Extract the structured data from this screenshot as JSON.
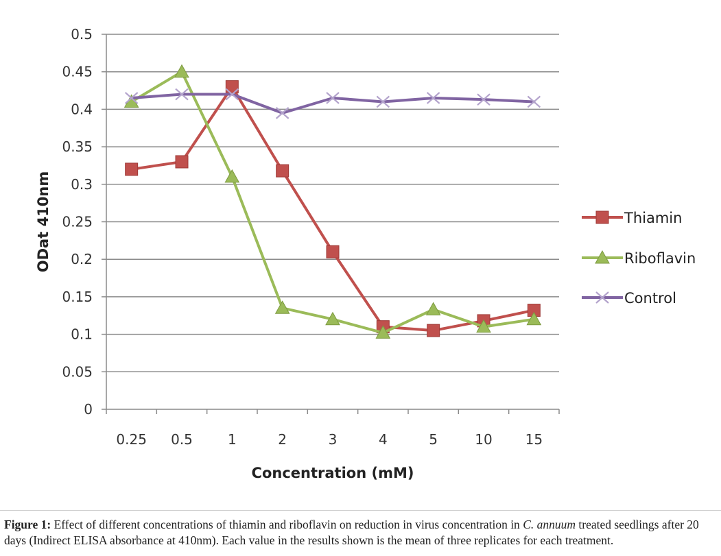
{
  "chart_data": {
    "type": "line",
    "title": "",
    "xlabel": "Concentration (mM)",
    "ylabel": "ODat 410nm",
    "categories": [
      "0.25",
      "0.5",
      "1",
      "2",
      "3",
      "4",
      "5",
      "10",
      "15"
    ],
    "ylim": [
      0,
      0.5
    ],
    "yticks": [
      0,
      0.05,
      0.1,
      0.15,
      0.2,
      0.25,
      0.3,
      0.35,
      0.4,
      0.45,
      0.5
    ],
    "ytick_labels": [
      "0",
      "0.05",
      "0.1",
      "0.15",
      "0.2",
      "0.25",
      "0.3",
      "0.35",
      "0.4",
      "0.45",
      "0.5"
    ],
    "grid": true,
    "legend_position": "right",
    "series": [
      {
        "name": "Thiamin",
        "color": "#c0504d",
        "marker": "square",
        "values": [
          0.32,
          0.33,
          0.43,
          0.318,
          0.21,
          0.11,
          0.105,
          0.118,
          0.132
        ]
      },
      {
        "name": "Riboflavin",
        "color": "#9bbb59",
        "marker": "triangle",
        "values": [
          0.41,
          0.45,
          0.31,
          0.135,
          0.12,
          0.102,
          0.133,
          0.11,
          0.12
        ]
      },
      {
        "name": "Control",
        "color": "#8064a2",
        "marker": "x",
        "values": [
          0.415,
          0.42,
          0.42,
          0.395,
          0.415,
          0.41,
          0.415,
          0.413,
          0.41
        ]
      }
    ]
  },
  "caption": {
    "label": "Figure 1:",
    "text_before": " Effect of different concentrations of thiamin and riboflavin on reduction in virus concentration in ",
    "species": "C. annuum",
    "text_after": " treated seedlings after 20 days (Indirect ELISA absorbance at 410nm). Each value in the results shown is the mean of three replicates for each treatment."
  }
}
